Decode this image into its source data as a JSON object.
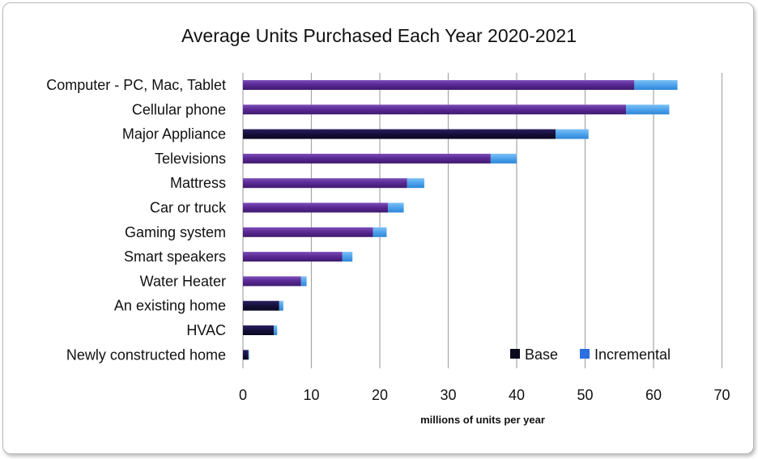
{
  "chart_data": {
    "type": "bar",
    "orientation": "horizontal",
    "stacked": true,
    "title": "Average Units Purchased Each Year 2020-2021",
    "xlabel": "millions of units per year",
    "ylabel": "",
    "xlim": [
      0,
      70
    ],
    "xticks": [
      0,
      10,
      20,
      30,
      40,
      50,
      60,
      70
    ],
    "grid": "vertical",
    "legend_position": "bottom-right",
    "categories": [
      "Computer - PC, Mac, Tablet",
      "Cellular phone",
      "Major Appliance",
      "Televisions",
      "Mattress",
      "Car or truck",
      "Gaming system",
      "Smart speakers",
      "Water Heater",
      "An existing home",
      "HVAC",
      "Newly constructed home"
    ],
    "series": [
      {
        "name": "Base",
        "legend_color": "#0a0a1e",
        "values": [
          57.2,
          56.0,
          45.7,
          36.2,
          24.0,
          21.2,
          19.0,
          14.5,
          8.5,
          5.3,
          4.5,
          0.8
        ]
      },
      {
        "name": "Incremental",
        "legend_color": "#2b6fe0",
        "values": [
          6.3,
          6.3,
          4.8,
          3.8,
          2.5,
          2.3,
          2.0,
          1.5,
          0.8,
          0.6,
          0.5,
          0.1
        ]
      }
    ],
    "colors": {
      "base_purple": "#5c2a96",
      "base_dark": "#1a1340",
      "incremental": "#4ea3ec",
      "grid": "#a6a6a6"
    }
  }
}
